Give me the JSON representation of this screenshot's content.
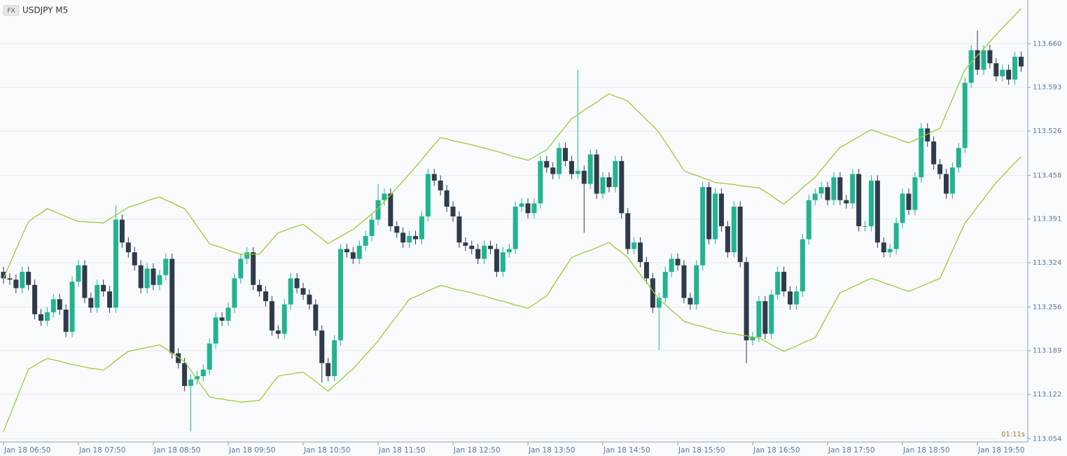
{
  "chart_data": {
    "type": "candlestick",
    "badge": "FX",
    "title": "USDJPY M5",
    "timer": "01:11s",
    "categories": [
      "Jan 18 06:50",
      null,
      null,
      null,
      null,
      null,
      null,
      null,
      null,
      null,
      null,
      null,
      "Jan 18 07:50",
      null,
      null,
      null,
      null,
      null,
      null,
      null,
      null,
      null,
      null,
      null,
      "Jan 18 08:50",
      null,
      null,
      null,
      null,
      null,
      null,
      null,
      null,
      null,
      null,
      null,
      "Jan 18 09:50",
      null,
      null,
      null,
      null,
      null,
      null,
      null,
      null,
      null,
      null,
      null,
      "Jan 18 10:50",
      null,
      null,
      null,
      null,
      null,
      null,
      null,
      null,
      null,
      null,
      null,
      "Jan 18 11:50",
      null,
      null,
      null,
      null,
      null,
      null,
      null,
      null,
      null,
      null,
      null,
      "Jan 18 12:50",
      null,
      null,
      null,
      null,
      null,
      null,
      null,
      null,
      null,
      null,
      null,
      "Jan 18 13:50",
      null,
      null,
      null,
      null,
      null,
      null,
      null,
      null,
      null,
      null,
      null,
      "Jan 18 14:50",
      null,
      null,
      null,
      null,
      null,
      null,
      null,
      null,
      null,
      null,
      null,
      "Jan 18 15:50",
      null,
      null,
      null,
      null,
      null,
      null,
      null,
      null,
      null,
      null,
      null,
      "Jan 18 16:50",
      null,
      null,
      null,
      null,
      null,
      null,
      null,
      null,
      null,
      null,
      null,
      "Jan 18 17:50",
      null,
      null,
      null,
      null,
      null,
      null,
      null,
      null,
      null,
      null,
      null,
      "Jan 18 18:50",
      null,
      null,
      null,
      null,
      null,
      null,
      null,
      null,
      null,
      null,
      null,
      "Jan 18 19:50",
      null,
      null,
      null,
      null,
      null,
      null,
      null
    ],
    "open": [
      113.31,
      113.3,
      113.298,
      113.285,
      113.31,
      113.29,
      113.245,
      113.235,
      113.248,
      113.268,
      113.252,
      113.218,
      113.295,
      113.32,
      113.27,
      113.255,
      113.29,
      113.28,
      113.255,
      113.39,
      113.355,
      113.34,
      113.32,
      113.285,
      113.315,
      113.29,
      113.305,
      113.33,
      113.185,
      113.17,
      113.135,
      113.145,
      113.15,
      113.16,
      113.2,
      113.24,
      113.235,
      113.255,
      113.3,
      113.33,
      113.34,
      113.29,
      113.28,
      113.265,
      113.22,
      113.215,
      113.26,
      113.3,
      113.285,
      113.275,
      113.26,
      113.22,
      113.17,
      113.15,
      113.205,
      113.345,
      113.34,
      113.33,
      113.35,
      113.365,
      113.39,
      113.42,
      113.43,
      113.38,
      113.37,
      113.355,
      113.365,
      113.36,
      113.395,
      113.46,
      113.45,
      113.435,
      113.41,
      113.395,
      113.355,
      113.35,
      113.345,
      113.33,
      113.35,
      113.345,
      113.31,
      113.34,
      113.345,
      113.41,
      113.415,
      113.4,
      113.415,
      113.48,
      113.47,
      113.46,
      113.5,
      113.48,
      113.46,
      113.465,
      113.445,
      113.49,
      113.43,
      113.455,
      113.44,
      113.48,
      113.4,
      113.345,
      113.355,
      113.325,
      113.3,
      113.255,
      113.27,
      113.31,
      113.33,
      113.32,
      113.27,
      113.26,
      113.32,
      113.44,
      113.36,
      113.43,
      113.38,
      113.34,
      113.41,
      113.325,
      113.205,
      113.21,
      113.265,
      113.215,
      113.275,
      113.31,
      113.28,
      113.26,
      113.28,
      113.36,
      113.42,
      113.43,
      113.44,
      113.42,
      113.455,
      113.42,
      113.415,
      113.46,
      113.38,
      113.38,
      113.45,
      113.355,
      113.34,
      113.345,
      113.385,
      113.43,
      113.405,
      113.455,
      113.53,
      113.51,
      113.475,
      113.46,
      113.43,
      113.47,
      113.5,
      113.6,
      113.65,
      113.62,
      113.65,
      113.63,
      113.61,
      113.62,
      113.605,
      113.64
    ],
    "high": [
      113.318,
      113.308,
      113.306,
      113.318,
      113.318,
      113.298,
      113.253,
      113.256,
      113.276,
      113.276,
      113.26,
      113.303,
      113.328,
      113.328,
      113.278,
      113.298,
      113.298,
      113.288,
      113.412,
      113.398,
      113.363,
      113.348,
      113.328,
      113.323,
      113.323,
      113.313,
      113.338,
      113.338,
      113.193,
      113.178,
      113.153,
      113.158,
      113.168,
      113.208,
      113.248,
      113.248,
      113.263,
      113.308,
      113.338,
      113.348,
      113.348,
      113.298,
      113.288,
      113.273,
      113.228,
      113.268,
      113.308,
      113.308,
      113.293,
      113.283,
      113.268,
      113.228,
      113.178,
      113.213,
      113.353,
      113.353,
      113.348,
      113.358,
      113.373,
      113.398,
      113.445,
      113.438,
      113.438,
      113.388,
      113.378,
      113.373,
      113.373,
      113.403,
      113.468,
      113.468,
      113.458,
      113.443,
      113.418,
      113.403,
      113.363,
      113.358,
      113.353,
      113.358,
      113.358,
      113.353,
      113.348,
      113.353,
      113.418,
      113.423,
      113.423,
      113.423,
      113.488,
      113.488,
      113.478,
      113.508,
      113.508,
      113.488,
      113.62,
      113.473,
      113.498,
      113.498,
      113.463,
      113.463,
      113.488,
      113.488,
      113.408,
      113.363,
      113.363,
      113.333,
      113.308,
      113.278,
      113.318,
      113.338,
      113.338,
      113.328,
      113.278,
      113.328,
      113.448,
      113.448,
      113.438,
      113.438,
      113.388,
      113.418,
      113.418,
      113.333,
      113.218,
      113.273,
      113.273,
      113.283,
      113.318,
      113.318,
      113.288,
      113.288,
      113.368,
      113.428,
      113.438,
      113.448,
      113.448,
      113.463,
      113.463,
      113.428,
      113.468,
      113.468,
      113.388,
      113.458,
      113.458,
      113.363,
      113.353,
      113.393,
      113.438,
      113.438,
      113.463,
      113.538,
      113.538,
      113.518,
      113.483,
      113.468,
      113.478,
      113.508,
      113.608,
      113.658,
      113.68,
      113.658,
      113.658,
      113.638,
      113.628,
      113.628,
      113.648,
      113.648
    ],
    "low": [
      113.292,
      113.29,
      113.277,
      113.277,
      113.282,
      113.237,
      113.227,
      113.227,
      113.24,
      113.244,
      113.21,
      113.21,
      113.287,
      113.262,
      113.247,
      113.247,
      113.272,
      113.247,
      113.247,
      113.347,
      113.332,
      113.312,
      113.277,
      113.277,
      113.282,
      113.282,
      113.297,
      113.177,
      113.162,
      113.127,
      113.065,
      113.137,
      113.142,
      113.152,
      113.192,
      113.227,
      113.227,
      113.247,
      113.292,
      113.322,
      113.282,
      113.272,
      113.257,
      113.212,
      113.207,
      113.207,
      113.252,
      113.277,
      113.267,
      113.252,
      113.212,
      113.14,
      113.142,
      113.142,
      113.197,
      113.332,
      113.322,
      113.322,
      113.342,
      113.357,
      113.382,
      113.412,
      113.372,
      113.362,
      113.347,
      113.347,
      113.352,
      113.352,
      113.387,
      113.442,
      113.427,
      113.402,
      113.387,
      113.347,
      113.342,
      113.337,
      113.322,
      113.322,
      113.337,
      113.302,
      113.302,
      113.332,
      113.337,
      113.402,
      113.392,
      113.392,
      113.407,
      113.462,
      113.452,
      113.452,
      113.472,
      113.452,
      113.452,
      113.37,
      113.437,
      113.422,
      113.422,
      113.432,
      113.432,
      113.392,
      113.337,
      113.337,
      113.317,
      113.292,
      113.247,
      113.19,
      113.262,
      113.302,
      113.312,
      113.262,
      113.252,
      113.252,
      113.312,
      113.352,
      113.352,
      113.372,
      113.332,
      113.332,
      113.317,
      113.17,
      113.197,
      113.202,
      113.207,
      113.207,
      113.267,
      113.272,
      113.252,
      113.252,
      113.272,
      113.352,
      113.412,
      113.422,
      113.412,
      113.412,
      113.412,
      113.407,
      113.407,
      113.372,
      113.372,
      113.372,
      113.347,
      113.332,
      113.332,
      113.337,
      113.377,
      113.397,
      113.397,
      113.447,
      113.502,
      113.467,
      113.452,
      113.422,
      113.422,
      113.462,
      113.492,
      113.592,
      113.612,
      113.612,
      113.622,
      113.602,
      113.602,
      113.597,
      113.597,
      113.617
    ],
    "close": [
      113.3,
      113.298,
      113.285,
      113.31,
      113.29,
      113.245,
      113.235,
      113.248,
      113.268,
      113.252,
      113.218,
      113.295,
      113.32,
      113.27,
      113.255,
      113.29,
      113.28,
      113.255,
      113.39,
      113.355,
      113.34,
      113.32,
      113.285,
      113.315,
      113.29,
      113.305,
      113.33,
      113.185,
      113.17,
      113.135,
      113.145,
      113.15,
      113.16,
      113.2,
      113.24,
      113.235,
      113.255,
      113.3,
      113.33,
      113.34,
      113.29,
      113.28,
      113.265,
      113.22,
      113.215,
      113.26,
      113.3,
      113.285,
      113.275,
      113.26,
      113.22,
      113.17,
      113.15,
      113.205,
      113.345,
      113.34,
      113.33,
      113.35,
      113.365,
      113.39,
      113.42,
      113.43,
      113.38,
      113.37,
      113.355,
      113.365,
      113.36,
      113.395,
      113.46,
      113.45,
      113.435,
      113.41,
      113.395,
      113.355,
      113.35,
      113.345,
      113.33,
      113.35,
      113.345,
      113.31,
      113.34,
      113.345,
      113.41,
      113.415,
      113.4,
      113.415,
      113.48,
      113.47,
      113.46,
      113.5,
      113.48,
      113.46,
      113.465,
      113.445,
      113.49,
      113.43,
      113.455,
      113.44,
      113.48,
      113.4,
      113.345,
      113.355,
      113.325,
      113.3,
      113.255,
      113.27,
      113.31,
      113.33,
      113.32,
      113.27,
      113.26,
      113.32,
      113.44,
      113.36,
      113.43,
      113.38,
      113.34,
      113.41,
      113.325,
      113.205,
      113.21,
      113.265,
      113.215,
      113.275,
      113.31,
      113.28,
      113.26,
      113.28,
      113.36,
      113.42,
      113.43,
      113.44,
      113.42,
      113.455,
      113.42,
      113.415,
      113.46,
      113.38,
      113.38,
      113.45,
      113.355,
      113.34,
      113.345,
      113.385,
      113.43,
      113.405,
      113.455,
      113.53,
      113.51,
      113.475,
      113.46,
      113.43,
      113.47,
      113.5,
      113.6,
      113.65,
      113.62,
      113.65,
      113.63,
      113.61,
      113.62,
      113.605,
      113.64,
      113.625
    ],
    "up_color": "#22b391",
    "down_color": "#2f3b4c",
    "series": [
      {
        "color": "#9acd32",
        "values": [
          113.3,
          113.322,
          113.344,
          113.366,
          113.387,
          113.394,
          113.4,
          113.407,
          113.403,
          113.399,
          113.395,
          113.391,
          113.387,
          113.387,
          113.386,
          113.386,
          113.385,
          113.391,
          113.397,
          113.403,
          113.409,
          113.412,
          113.415,
          113.419,
          113.422,
          113.425,
          113.42,
          113.416,
          113.411,
          113.407,
          113.394,
          113.38,
          113.367,
          113.353,
          113.35,
          113.347,
          113.343,
          113.34,
          113.337,
          113.337,
          113.337,
          113.337,
          113.348,
          113.359,
          113.37,
          113.373,
          113.377,
          113.38,
          113.383,
          113.376,
          113.368,
          113.361,
          113.353,
          113.359,
          113.364,
          113.37,
          113.375,
          113.383,
          113.391,
          113.399,
          113.407,
          113.418,
          113.428,
          113.439,
          113.449,
          113.46,
          113.471,
          113.482,
          113.494,
          113.505,
          113.516,
          113.514,
          113.511,
          113.509,
          113.507,
          113.505,
          113.502,
          113.5,
          113.497,
          113.495,
          113.492,
          113.489,
          113.486,
          113.484,
          113.481,
          113.486,
          113.492,
          113.497,
          113.509,
          113.521,
          113.533,
          113.545,
          113.551,
          113.558,
          113.564,
          113.57,
          113.577,
          113.583,
          113.579,
          113.576,
          113.572,
          113.562,
          113.553,
          113.543,
          113.534,
          113.524,
          113.509,
          113.495,
          113.48,
          113.465,
          113.461,
          113.458,
          113.454,
          113.451,
          113.447,
          113.446,
          113.445,
          113.444,
          113.442,
          113.441,
          113.44,
          113.439,
          113.433,
          113.427,
          113.42,
          113.414,
          113.422,
          113.43,
          113.439,
          113.447,
          113.455,
          113.467,
          113.478,
          113.49,
          113.501,
          113.506,
          113.512,
          113.517,
          113.523,
          113.528,
          113.525,
          113.521,
          113.518,
          113.515,
          113.511,
          113.508,
          113.512,
          113.517,
          113.521,
          113.526,
          113.53,
          113.553,
          113.575,
          113.598,
          113.62,
          113.631,
          113.642,
          113.652,
          113.663,
          113.674,
          113.684,
          113.694,
          113.704,
          113.714
        ]
      },
      {
        "color": "#9acd32",
        "values": [
          113.065,
          113.089,
          113.113,
          113.137,
          113.161,
          113.166,
          113.172,
          113.177,
          113.175,
          113.173,
          113.17,
          113.168,
          113.166,
          113.164,
          113.162,
          113.161,
          113.159,
          113.166,
          113.174,
          113.181,
          113.188,
          113.19,
          113.192,
          113.194,
          113.196,
          113.198,
          113.192,
          113.185,
          113.179,
          113.172,
          113.159,
          113.145,
          113.132,
          113.118,
          113.116,
          113.115,
          113.113,
          113.112,
          113.11,
          113.111,
          113.112,
          113.113,
          113.125,
          113.138,
          113.15,
          113.152,
          113.153,
          113.155,
          113.156,
          113.149,
          113.142,
          113.134,
          113.127,
          113.136,
          113.144,
          113.153,
          113.161,
          113.172,
          113.183,
          113.193,
          113.204,
          113.217,
          113.23,
          113.242,
          113.255,
          113.268,
          113.272,
          113.276,
          113.281,
          113.285,
          113.289,
          113.287,
          113.284,
          113.282,
          113.28,
          113.278,
          113.275,
          113.273,
          113.27,
          113.267,
          113.265,
          113.262,
          113.259,
          113.257,
          113.254,
          113.26,
          113.267,
          113.273,
          113.288,
          113.303,
          113.317,
          113.332,
          113.336,
          113.34,
          113.343,
          113.347,
          113.351,
          113.355,
          113.347,
          113.34,
          113.332,
          113.319,
          113.306,
          113.294,
          113.281,
          113.268,
          113.26,
          113.251,
          113.243,
          113.234,
          113.231,
          113.228,
          113.226,
          113.223,
          113.22,
          113.218,
          113.216,
          113.215,
          113.213,
          113.212,
          113.21,
          113.209,
          113.204,
          113.198,
          113.193,
          113.188,
          113.192,
          113.196,
          113.201,
          113.205,
          113.209,
          113.226,
          113.244,
          113.261,
          113.278,
          113.282,
          113.287,
          113.291,
          113.296,
          113.3,
          113.297,
          113.293,
          113.29,
          113.287,
          113.283,
          113.28,
          113.284,
          113.288,
          113.292,
          113.296,
          113.3,
          113.321,
          113.343,
          113.364,
          113.385,
          113.397,
          113.41,
          113.422,
          113.435,
          113.447,
          113.457,
          113.467,
          113.477,
          113.487
        ]
      }
    ],
    "ylim": [
      113.049,
      113.727
    ],
    "yticks": [
      113.054,
      113.122,
      113.189,
      113.256,
      113.324,
      113.391,
      113.458,
      113.526,
      113.593,
      {
        "value": 113.66,
        "label": "113.660"
      }
    ],
    "grid": true
  }
}
